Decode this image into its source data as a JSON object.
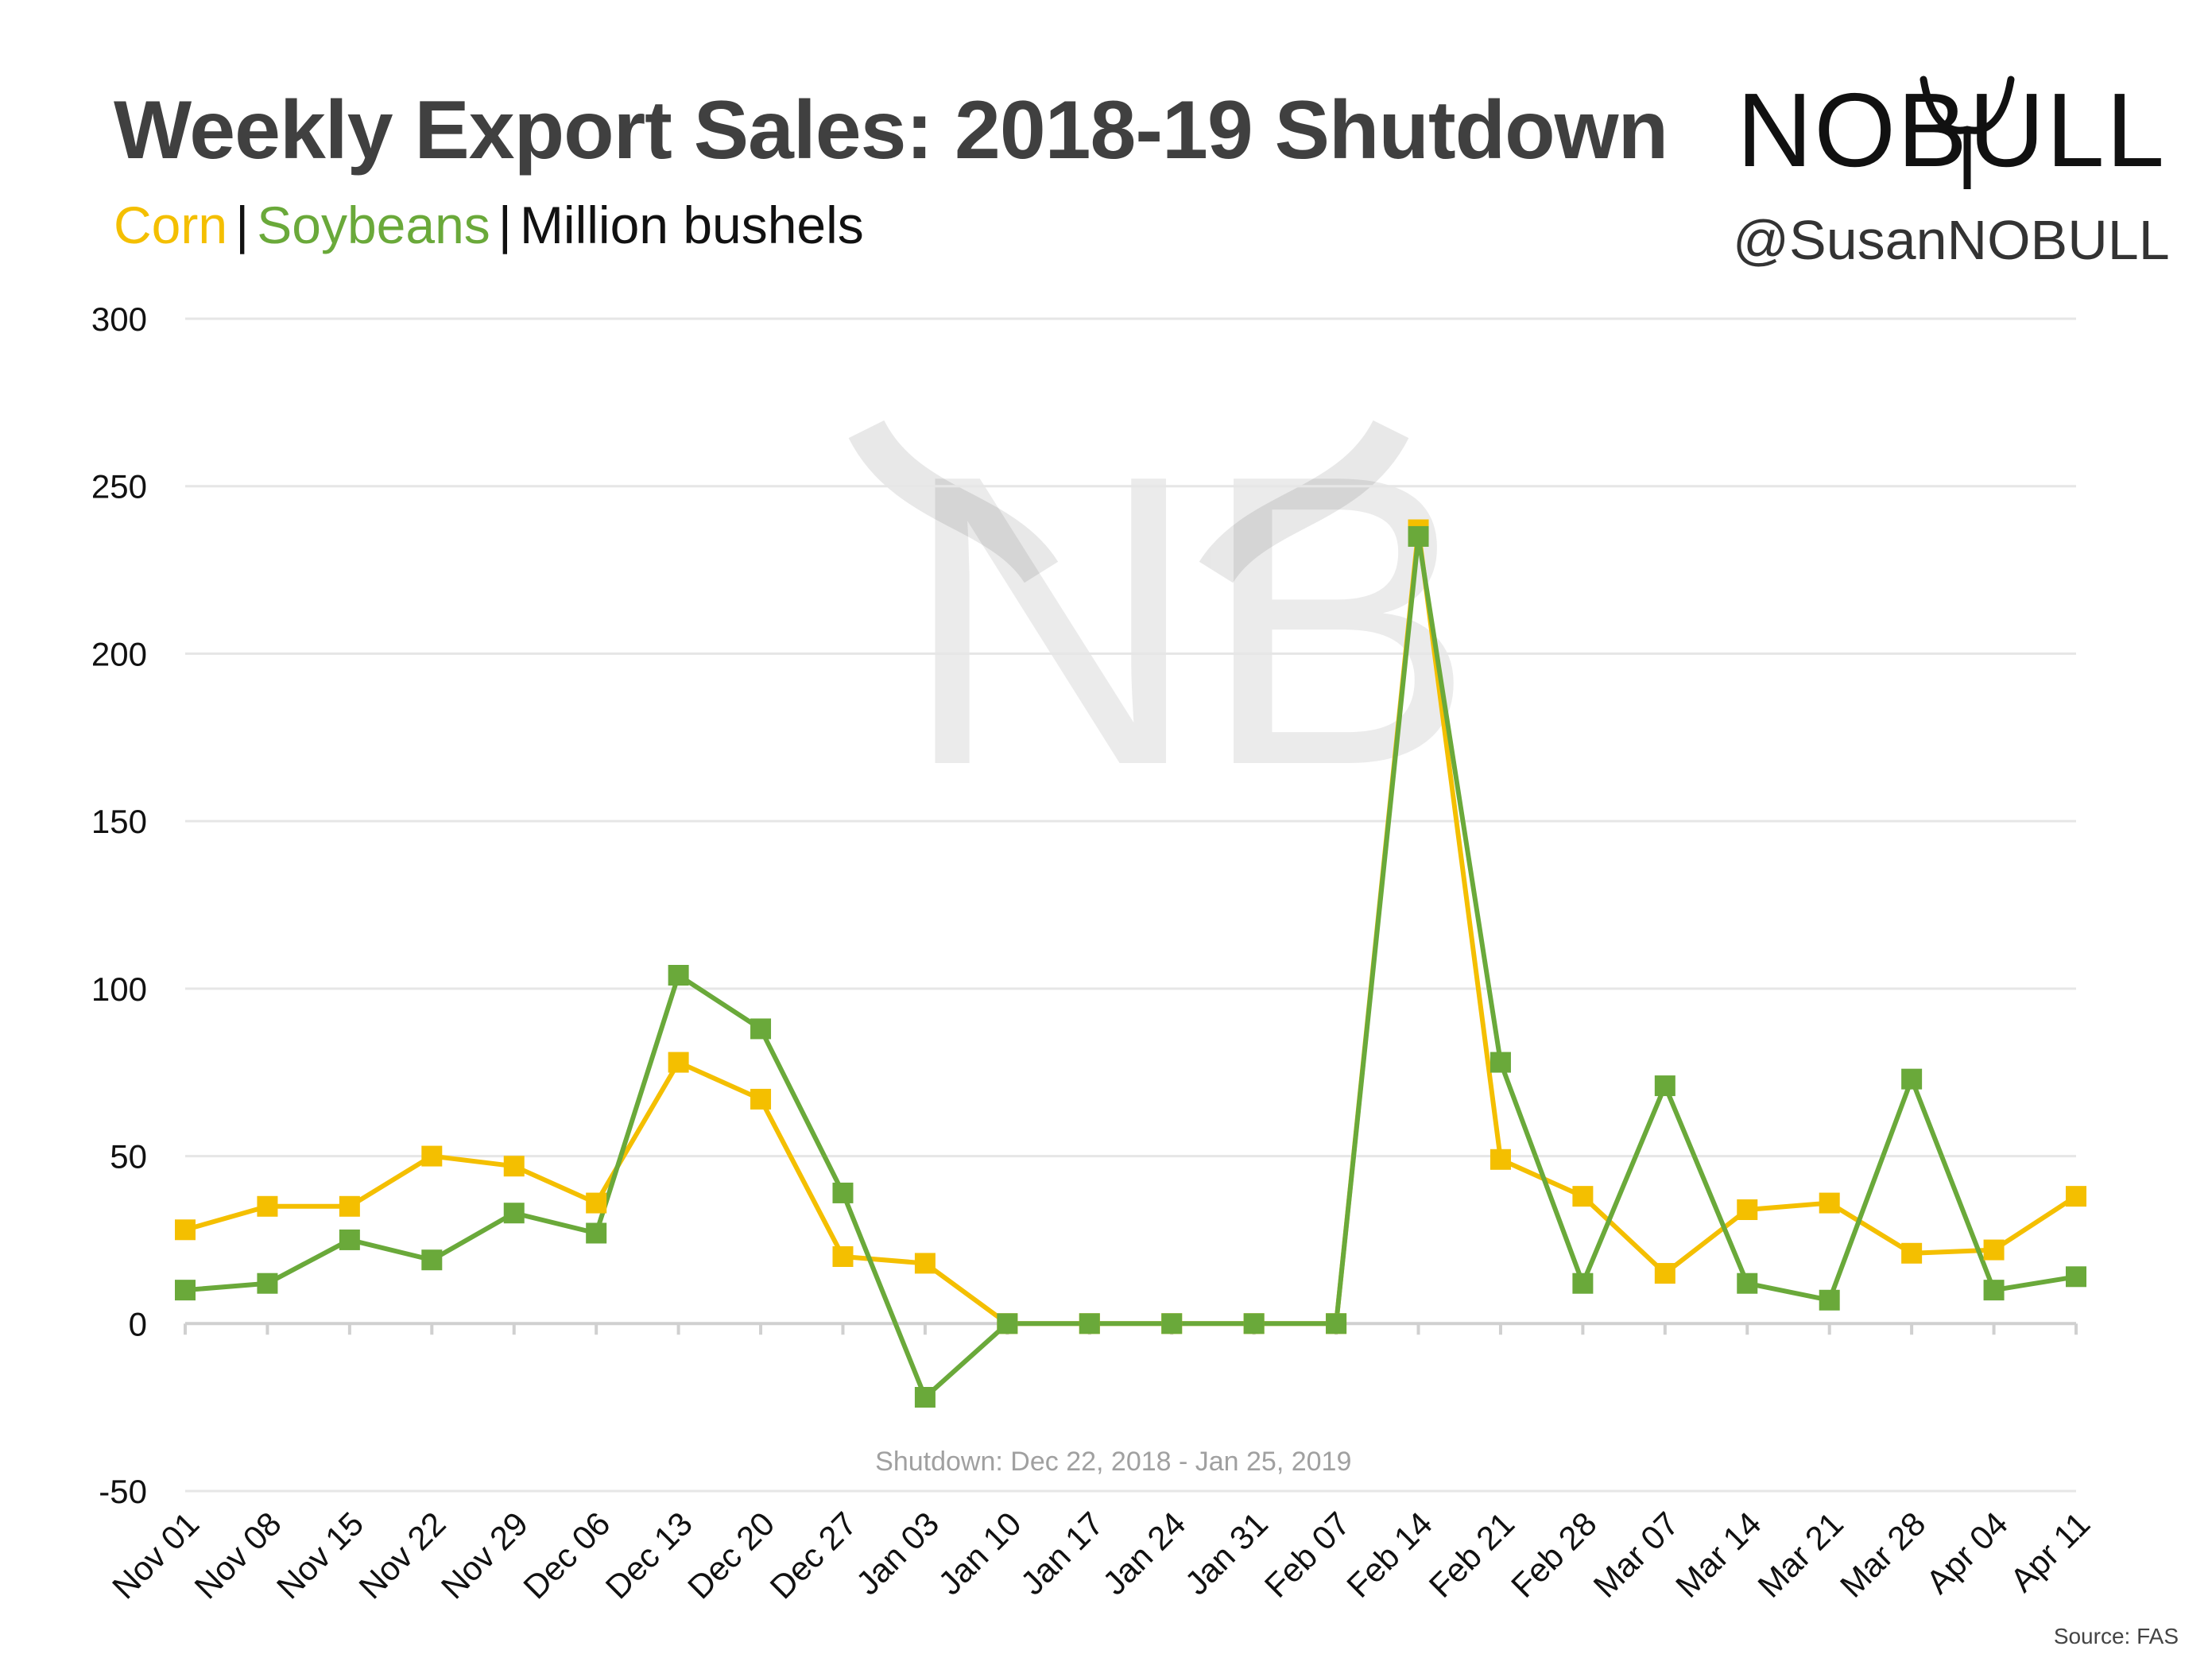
{
  "header": {
    "title": "Weekly Export Sales: 2018-19 Shutdown",
    "subtitle_corn": "Corn",
    "subtitle_sep1": "|",
    "subtitle_soy": "Soybeans",
    "subtitle_sep2": "|",
    "subtitle_unit": "Million bushels"
  },
  "branding": {
    "logo_text": "NOBULL",
    "handle": "@SusanNOBULL",
    "watermark_text": "NB",
    "logo_icon": "bull-horns-icon"
  },
  "footer": {
    "source": "Source: FAS"
  },
  "colors": {
    "corn": "#f4bf00",
    "soybeans": "#6aa93a",
    "grid": "#e6e6e6",
    "axis": "#d0d0d0",
    "annotation": "#a0a0a0"
  },
  "chart_data": {
    "type": "line",
    "title": "Weekly Export Sales: 2018-19 Shutdown",
    "xlabel": "",
    "ylabel": "",
    "ylim": [
      -50,
      300
    ],
    "yticks": [
      -50,
      0,
      50,
      100,
      150,
      200,
      250,
      300
    ],
    "grid": true,
    "categories": [
      "Nov 01",
      "Nov 08",
      "Nov 15",
      "Nov 22",
      "Nov 29",
      "Dec 06",
      "Dec 13",
      "Dec 20",
      "Dec 27",
      "Jan 03",
      "Jan 10",
      "Jan 17",
      "Jan 24",
      "Jan 31",
      "Feb 07",
      "Feb 14",
      "Feb 21",
      "Feb 28",
      "Mar 07",
      "Mar 14",
      "Mar 21",
      "Mar 28",
      "Apr 04",
      "Apr 11"
    ],
    "series": [
      {
        "name": "Corn",
        "color": "#f4bf00",
        "values": [
          28,
          35,
          35,
          50,
          47,
          36,
          78,
          67,
          20,
          18,
          0,
          0,
          0,
          0,
          0,
          237,
          49,
          38,
          15,
          34,
          36,
          21,
          22,
          38
        ]
      },
      {
        "name": "Soybeans",
        "color": "#6aa93a",
        "values": [
          10,
          12,
          25,
          19,
          33,
          27,
          104,
          88,
          39,
          -22,
          0,
          0,
          0,
          0,
          0,
          235,
          78,
          12,
          71,
          12,
          7,
          73,
          10,
          14
        ]
      }
    ],
    "annotations": [
      {
        "text": "Shutdown: Dec 22, 2018 - Jan 25, 2019",
        "x": "Jan 17",
        "y": -41
      }
    ]
  }
}
